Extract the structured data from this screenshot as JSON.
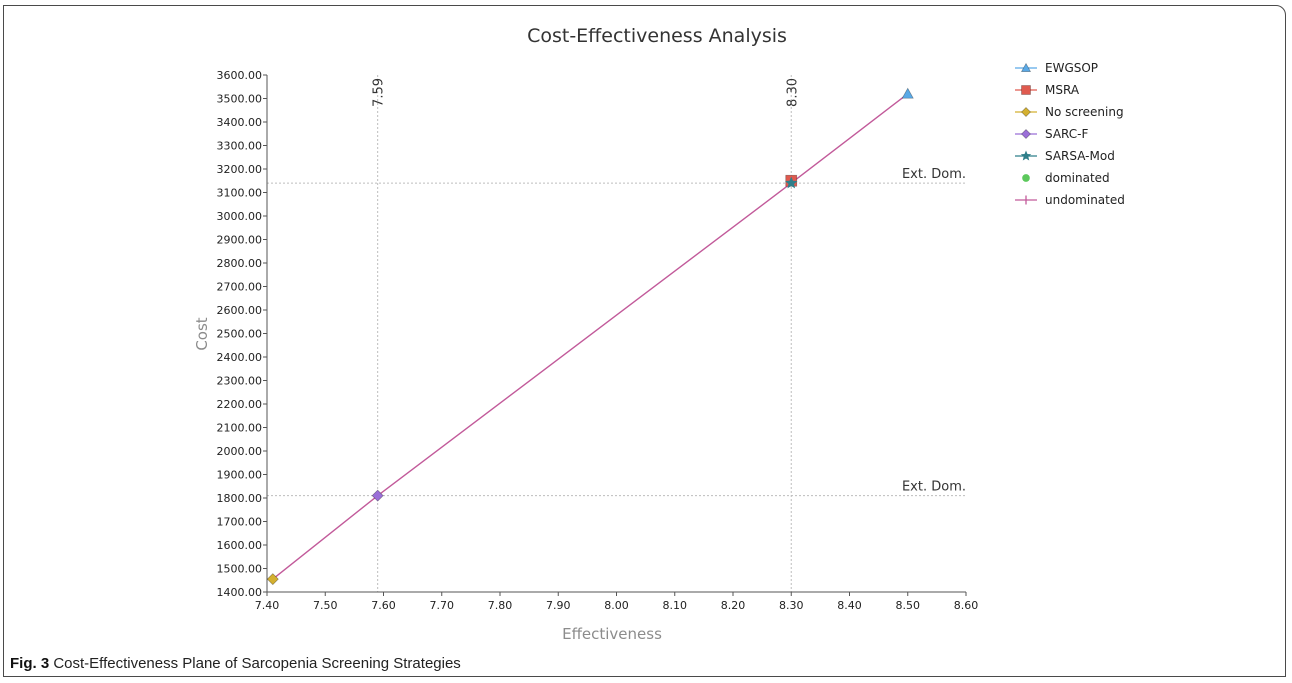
{
  "caption": {
    "label": "Fig. 3",
    "text": "Cost-Effectiveness Plane of Sarcopenia Screening Strategies"
  },
  "chart_data": {
    "type": "scatter",
    "title": "Cost-Effectiveness Analysis",
    "xlabel": "Effectiveness",
    "ylabel": "Cost",
    "xlim": [
      7.4,
      8.6
    ],
    "ylim": [
      1400,
      3600
    ],
    "x_ticks": [
      "7.40",
      "7.50",
      "7.60",
      "7.70",
      "7.80",
      "7.90",
      "8.00",
      "8.10",
      "8.20",
      "8.30",
      "8.40",
      "8.50",
      "8.60"
    ],
    "y_ticks": [
      "1400.00",
      "1500.00",
      "1600.00",
      "1700.00",
      "1800.00",
      "1900.00",
      "2000.00",
      "2100.00",
      "2200.00",
      "2300.00",
      "2400.00",
      "2500.00",
      "2600.00",
      "2700.00",
      "2800.00",
      "2900.00",
      "3000.00",
      "3100.00",
      "3200.00",
      "3300.00",
      "3400.00",
      "3500.00",
      "3600.00"
    ],
    "legend_position": "right",
    "series": [
      {
        "name": "EWGSOP",
        "marker": "triangle",
        "color": "#5aa9e6",
        "x": 8.5,
        "y": 3520
      },
      {
        "name": "MSRA",
        "marker": "square",
        "color": "#e05a4f",
        "x": 8.3,
        "y": 3150
      },
      {
        "name": "No screening",
        "marker": "diamond",
        "color": "#d4b030",
        "x": 7.41,
        "y": 1455
      },
      {
        "name": "SARC-F",
        "marker": "diamond",
        "color": "#9b6fd8",
        "x": 7.59,
        "y": 1810
      },
      {
        "name": "SARSA-Mod",
        "marker": "star",
        "color": "#2f7f8a",
        "x": 8.3,
        "y": 3140
      },
      {
        "name": "dominated",
        "marker": "circle",
        "color": "#5cc85c"
      },
      {
        "name": "undominated",
        "marker": "plus",
        "color": "#c25a9a"
      }
    ],
    "undominated_line": {
      "x": [
        7.41,
        7.59,
        8.3,
        8.5
      ],
      "y": [
        1455,
        1810,
        3140,
        3520
      ]
    },
    "vertical_reference_lines": [
      {
        "x": 7.59,
        "label": "7.59"
      },
      {
        "x": 8.3,
        "label": "8.30"
      }
    ],
    "horizontal_reference_lines": [
      {
        "y": 3140,
        "label": "Ext. Dom."
      },
      {
        "y": 1810,
        "label": "Ext. Dom."
      }
    ],
    "colors": {
      "axis": "#555555",
      "reference_line": "#bdbdbd",
      "axis_label": "#8c8c8c",
      "title": "#333333"
    }
  }
}
